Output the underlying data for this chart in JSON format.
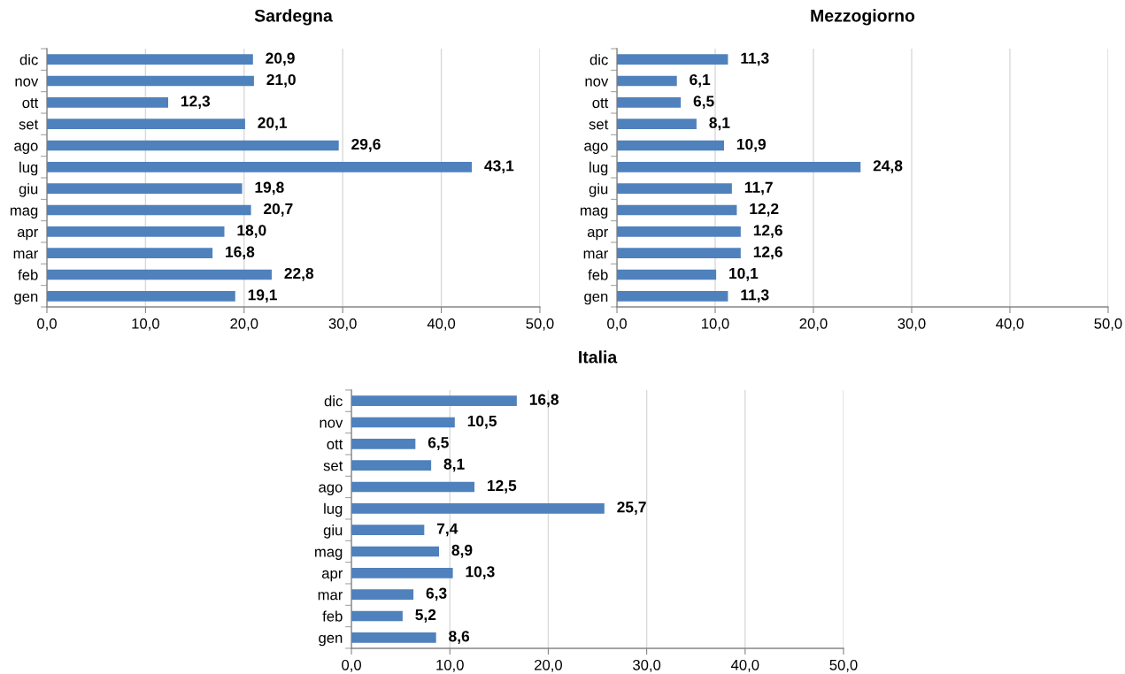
{
  "chart_data": [
    {
      "type": "bar",
      "orientation": "horizontal",
      "title": "Sardegna",
      "categories": [
        "dic",
        "nov",
        "ott",
        "set",
        "ago",
        "lug",
        "giu",
        "mag",
        "apr",
        "mar",
        "feb",
        "gen"
      ],
      "values": [
        20.9,
        21.0,
        12.3,
        20.1,
        29.6,
        43.1,
        19.8,
        20.7,
        18.0,
        16.8,
        22.8,
        19.1
      ],
      "value_labels": [
        "20,9",
        "21,0",
        "12,3",
        "20,1",
        "29,6",
        "43,1",
        "19,8",
        "20,7",
        "18,0",
        "16,8",
        "22,8",
        "19,1"
      ],
      "color": "#4f81bd",
      "xlim": [
        0,
        50
      ],
      "xticks": [
        {
          "value": 0,
          "label": "0,0"
        },
        {
          "value": 10,
          "label": "10,0"
        },
        {
          "value": 20,
          "label": "20,0"
        },
        {
          "value": 30,
          "label": "30,0"
        },
        {
          "value": 40,
          "label": "40,0"
        },
        {
          "value": 50,
          "label": "50,0"
        }
      ],
      "grid": "x"
    },
    {
      "type": "bar",
      "orientation": "horizontal",
      "title": "Mezzogiorno",
      "categories": [
        "dic",
        "nov",
        "ott",
        "set",
        "ago",
        "lug",
        "giu",
        "mag",
        "apr",
        "mar",
        "feb",
        "gen"
      ],
      "values": [
        11.3,
        6.1,
        6.5,
        8.1,
        10.9,
        24.8,
        11.7,
        12.2,
        12.6,
        12.6,
        10.1,
        11.3
      ],
      "value_labels": [
        "11,3",
        "6,1",
        "6,5",
        "8,1",
        "10,9",
        "24,8",
        "11,7",
        "12,2",
        "12,6",
        "12,6",
        "10,1",
        "11,3"
      ],
      "color": "#4f81bd",
      "xlim": [
        0,
        50
      ],
      "xticks": [
        {
          "value": 0,
          "label": "0,0"
        },
        {
          "value": 10,
          "label": "10,0"
        },
        {
          "value": 20,
          "label": "20,0"
        },
        {
          "value": 30,
          "label": "30,0"
        },
        {
          "value": 40,
          "label": "40,0"
        },
        {
          "value": 50,
          "label": "50,0"
        }
      ],
      "grid": "x"
    },
    {
      "type": "bar",
      "orientation": "horizontal",
      "title": "Italia",
      "categories": [
        "dic",
        "nov",
        "ott",
        "set",
        "ago",
        "lug",
        "giu",
        "mag",
        "apr",
        "mar",
        "feb",
        "gen"
      ],
      "values": [
        16.8,
        10.5,
        6.5,
        8.1,
        12.5,
        25.7,
        7.4,
        8.9,
        10.3,
        6.3,
        5.2,
        8.6
      ],
      "value_labels": [
        "16,8",
        "10,5",
        "6,5",
        "8,1",
        "12,5",
        "25,7",
        "7,4",
        "8,9",
        "10,3",
        "6,3",
        "5,2",
        "8,6"
      ],
      "color": "#4f81bd",
      "xlim": [
        0,
        50
      ],
      "xticks": [
        {
          "value": 0,
          "label": "0,0"
        },
        {
          "value": 10,
          "label": "10,0"
        },
        {
          "value": 20,
          "label": "20,0"
        },
        {
          "value": 30,
          "label": "30,0"
        },
        {
          "value": 40,
          "label": "40,0"
        },
        {
          "value": 50,
          "label": "50,0"
        }
      ],
      "grid": "x"
    }
  ]
}
